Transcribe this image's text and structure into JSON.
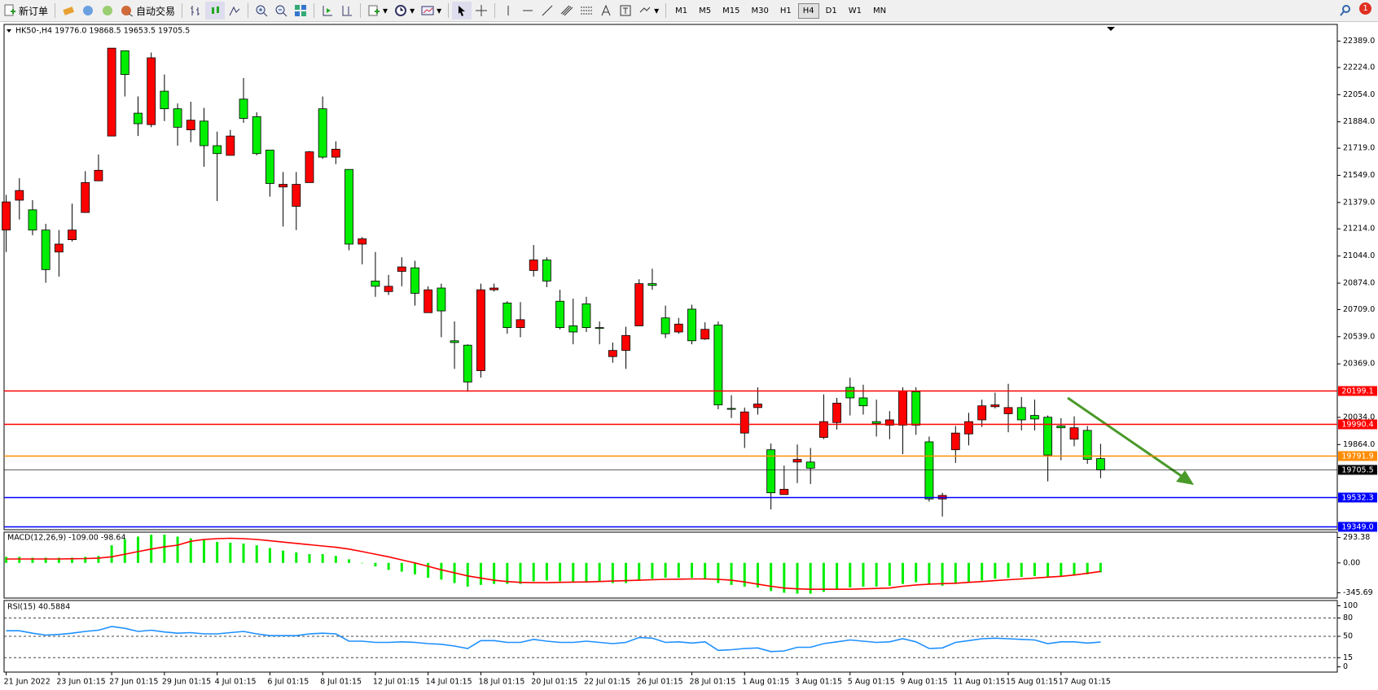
{
  "toolbar": {
    "new_order": "新订单",
    "auto_trading": "自动交易",
    "timeframes": [
      "M1",
      "M5",
      "M15",
      "M30",
      "H1",
      "H4",
      "D1",
      "W1",
      "MN"
    ],
    "active_timeframe": "H4",
    "notifications": "1"
  },
  "chart_data": [
    {
      "type": "candlestick",
      "title": "HK50-,H4 19776.0 19868.5 19653.5 19705.5",
      "up_color": "#ff0000",
      "down_color": "#00ee00",
      "categories": [
        "21 Jun 2022",
        null,
        null,
        null,
        "23 Jun 01:15",
        null,
        null,
        null,
        "27 Jun 01:15",
        null,
        null,
        null,
        "29 Jun 01:15",
        null,
        null,
        null,
        "4 Jul 01:15",
        null,
        null,
        null,
        "6 Jul 01:15",
        null,
        null,
        null,
        "8 Jul 01:15",
        null,
        null,
        null,
        "12 Jul 01:15",
        null,
        null,
        null,
        "14 Jul 01:15",
        null,
        null,
        null,
        "18 Jul 01:15",
        null,
        null,
        null,
        "20 Jul 01:15",
        null,
        null,
        null,
        "22 Jul 01:15",
        null,
        null,
        null,
        "26 Jul 01:15",
        null,
        null,
        null,
        "28 Jul 01:15",
        null,
        null,
        null,
        "1 Aug 01:15",
        null,
        null,
        null,
        "3 Aug 01:15",
        null,
        null,
        null,
        "5 Aug 01:15",
        null,
        null,
        null,
        "9 Aug 01:15",
        null,
        null,
        null,
        "11 Aug 01:15",
        null,
        null,
        null,
        "15 Aug 01:15",
        null,
        null,
        null,
        "17 Aug 01:15",
        null,
        null,
        null
      ],
      "open": [
        21206.5,
        21393.5,
        21333,
        21206.5,
        21069,
        21146,
        21316.5,
        21514.5,
        21795,
        22328.5,
        21938,
        21866.5,
        22075.5,
        21965.5,
        21833.5,
        21888.5,
        21734.5,
        21674,
        22026,
        21916,
        21707,
        21476,
        21355,
        21503.5,
        21965.5,
        21663,
        21586,
        21118.5,
        20887.5,
        20821.5,
        20948,
        20970,
        20689.5,
        20843.5,
        20513.5,
        20486,
        20326.5,
        20832.5,
        20750,
        20596,
        20953.5,
        21019.5,
        20761,
        20607,
        20744.5,
        20596,
        20414.5,
        20453,
        20607,
        20871,
        20656.5,
        20568.5,
        20711.5,
        20524.5,
        20612.5,
        20090,
        19936,
        20095.5,
        19831.5,
        19551,
        19754.5,
        19754.5,
        19908.5,
        20002,
        20222,
        20156,
        20007.5,
        19985.5,
        19985.5,
        20194.5,
        19881,
        19523.5,
        19831.5,
        19930.5,
        20018.5,
        20101,
        20057,
        20095.5,
        20046,
        20035,
        19980,
        19897.5,
        19952.5,
        19776
      ],
      "high": [
        21426.5,
        21531,
        21393.5,
        21245,
        21206.5,
        21371.5,
        21575,
        21679.5,
        22345,
        22328.5,
        22042.5,
        22317.5,
        22180,
        21998.5,
        22009.5,
        21971,
        21822.5,
        21833.5,
        22158,
        21943.5,
        21707,
        21569.5,
        21569.5,
        21701.5,
        22042.5,
        21762,
        21586,
        21162.5,
        21069,
        20926,
        21036,
        21014,
        20854.5,
        20871,
        20634.5,
        20491.5,
        20871,
        20871,
        20761,
        20755.5,
        21113,
        21036,
        20832.5,
        20777.5,
        20788.5,
        20634.5,
        20502.5,
        20601.5,
        20898.5,
        20964.5,
        20733.5,
        20656.5,
        20739,
        20629,
        20634.5,
        20172.5,
        20095.5,
        20222,
        19870,
        19732.5,
        19864.5,
        19842.5,
        20178,
        20156,
        20282.5,
        20238.5,
        20145,
        20073.5,
        20222,
        20222,
        19914,
        19562,
        19980,
        20062.5,
        20145,
        20189,
        20244,
        20161.5,
        20145,
        20046,
        20029.5,
        20040.5,
        19980,
        19868.5
      ],
      "low": [
        21069,
        21272.5,
        21173.5,
        20876.5,
        20915,
        21135,
        21316.5,
        21514.5,
        21795,
        22042.5,
        21795,
        21850,
        21888.5,
        21734.5,
        21756.5,
        21602.5,
        21388,
        21674,
        21877.5,
        21674,
        21415.5,
        21228.5,
        21206.5,
        21503.5,
        21652,
        21619,
        21080,
        20992,
        20788.5,
        20799.5,
        20854.5,
        20733.5,
        20689.5,
        20535.5,
        20337.5,
        20194.5,
        20282.5,
        20821.5,
        20557.5,
        20535.5,
        20915,
        20849,
        20585,
        20491.5,
        20568.5,
        20491.5,
        20376,
        20337.5,
        20607,
        20832.5,
        20530,
        20557.5,
        20491.5,
        20519,
        20084.5,
        20029.5,
        19842.5,
        20051.5,
        19457.5,
        19551,
        19622.5,
        19617,
        19897.5,
        19958,
        20046,
        20051.5,
        19914,
        19897.5,
        19804,
        19925,
        19507,
        19413.5,
        19749,
        19859,
        19974.5,
        20090,
        19941,
        19952.5,
        19952.5,
        19633.5,
        19765.5,
        19853.5,
        19743.5,
        19653.5
      ],
      "close": [
        21382.5,
        21454,
        21206.5,
        20959,
        21118.5,
        21206.5,
        21503.5,
        21580.5,
        22345,
        22180,
        21872,
        22284.5,
        21965.5,
        21850,
        21894,
        21734.5,
        21685,
        21795,
        21905,
        21685,
        21498,
        21492.5,
        21492.5,
        21696,
        21663,
        21712.5,
        21118.5,
        21151.5,
        20854.5,
        20854.5,
        20975.5,
        20810.5,
        20832.5,
        20700.5,
        20502.5,
        20255,
        20832.5,
        20843.5,
        20596,
        20645.5,
        21019.5,
        20887.5,
        20596,
        20568.5,
        20596,
        20590.5,
        20453,
        20546.5,
        20871,
        20860,
        20557.5,
        20618,
        20513.5,
        20585,
        20112,
        20084.5,
        20068,
        20117.5,
        19562,
        19584,
        19771,
        19716,
        20007.5,
        20123,
        20156,
        20106.5,
        19996.5,
        20018.5,
        20200,
        19985.5,
        19523.5,
        19545.5,
        19936,
        20007.5,
        20106.5,
        20112,
        20095.5,
        20018.5,
        20024,
        19798.5,
        19969,
        19969,
        19771,
        19705.5
      ],
      "ylim": [
        19331,
        22493.5
      ],
      "yticks": [
        {
          "value": 22389,
          "label": "22389.0"
        },
        {
          "value": 22224,
          "label": "22224.0"
        },
        {
          "value": 22054,
          "label": "22054.0"
        },
        {
          "value": 21884,
          "label": "21884.0"
        },
        {
          "value": 21719,
          "label": "21719.0"
        },
        {
          "value": 21549,
          "label": "21549.0"
        },
        {
          "value": 21379,
          "label": "21379.0"
        },
        {
          "value": 21214,
          "label": "21214.0"
        },
        {
          "value": 21044,
          "label": "21044.0"
        },
        {
          "value": 20874,
          "label": "20874.0"
        },
        {
          "value": 20709,
          "label": "20709.0"
        },
        {
          "value": 20539,
          "label": "20539.0"
        },
        {
          "value": 20369,
          "label": "20369.0"
        },
        {
          "value": 20034,
          "label": "20034.0"
        },
        {
          "value": 19864,
          "label": "19864.0"
        }
      ],
      "levels": [
        {
          "value": 20199.1,
          "label": "20199.1",
          "color": "#ff0000"
        },
        {
          "value": 19990.4,
          "label": "19990.4",
          "color": "#ff0000"
        },
        {
          "value": 19791.9,
          "label": "19791.9",
          "color": "#ff8c00"
        },
        {
          "value": 19705.5,
          "label": "19705.5",
          "color": "#000000"
        },
        {
          "value": 19532.3,
          "label": "19532.3",
          "color": "#0000ff"
        },
        {
          "value": 19349,
          "label": "19349.0",
          "color": "#0000ff"
        }
      ]
    },
    {
      "type": "macd",
      "title": "MACD(12,26,9) -109.00 -98.64",
      "color": "#00ee00",
      "signal_color": "#ff0000",
      "values": [
        70,
        70,
        60,
        60,
        60,
        60,
        70,
        80,
        203,
        274,
        304,
        325,
        325,
        304,
        284,
        264,
        243,
        233,
        223,
        203,
        172,
        142,
        122,
        101,
        101,
        81,
        41,
        -5,
        -41,
        -81,
        -101,
        -132,
        -172,
        -193,
        -233,
        -274,
        -254,
        -243,
        -243,
        -243,
        -213,
        -203,
        -213,
        -223,
        -213,
        -213,
        -233,
        -233,
        -203,
        -183,
        -172,
        -172,
        -172,
        -183,
        -233,
        -254,
        -274,
        -284,
        -325,
        -345,
        -355,
        -355,
        -335,
        -304,
        -284,
        -274,
        -274,
        -264,
        -243,
        -223,
        -243,
        -264,
        -243,
        -223,
        -203,
        -183,
        -172,
        -162,
        -152,
        -162,
        -152,
        -142,
        -132,
        -109
      ],
      "signal": [
        45,
        45,
        45,
        45,
        45,
        48,
        50,
        55,
        70,
        100,
        130,
        160,
        185,
        205,
        250,
        270,
        280,
        285,
        280,
        270,
        255,
        240,
        225,
        210,
        195,
        180,
        160,
        130,
        100,
        70,
        35,
        0,
        -40,
        -80,
        -115,
        -150,
        -175,
        -200,
        -215,
        -225,
        -228,
        -228,
        -225,
        -222,
        -220,
        -215,
        -210,
        -205,
        -200,
        -195,
        -190,
        -188,
        -185,
        -185,
        -190,
        -200,
        -220,
        -245,
        -270,
        -290,
        -300,
        -305,
        -305,
        -305,
        -305,
        -300,
        -295,
        -290,
        -270,
        -255,
        -245,
        -240,
        -235,
        -225,
        -215,
        -205,
        -195,
        -185,
        -175,
        -165,
        -155,
        -140,
        -120,
        -98.64
      ],
      "ylim": [
        -406,
        355
      ],
      "yticks": [
        293.38,
        {
          "value": 0,
          "label": "0.00"
        },
        -345.69
      ]
    },
    {
      "type": "rsi",
      "title": "RSI(15) 40.5884",
      "color": "#1e90ff",
      "values": [
        59,
        59,
        55,
        52,
        53,
        55,
        58,
        60,
        66,
        63,
        58,
        60,
        57,
        55,
        56,
        54,
        54,
        56,
        58,
        54,
        51,
        51,
        51,
        54,
        55,
        54,
        42,
        42,
        40,
        40,
        41,
        40,
        38,
        37,
        34,
        30,
        43,
        43,
        40,
        40,
        45,
        42,
        40,
        40,
        42,
        40,
        38,
        40,
        48,
        47,
        40,
        41,
        39,
        41,
        27,
        28,
        30,
        31,
        25,
        26,
        32,
        32,
        38,
        41,
        44,
        42,
        40,
        41,
        46,
        41,
        30,
        31,
        40,
        43,
        46,
        47,
        46,
        45,
        44,
        38,
        41,
        41,
        39,
        40.5884
      ],
      "ylim": [
        -8.6,
        108.6
      ],
      "yticks": [
        100,
        80,
        50,
        15,
        0
      ],
      "levels": [
        80,
        50,
        15
      ]
    }
  ]
}
